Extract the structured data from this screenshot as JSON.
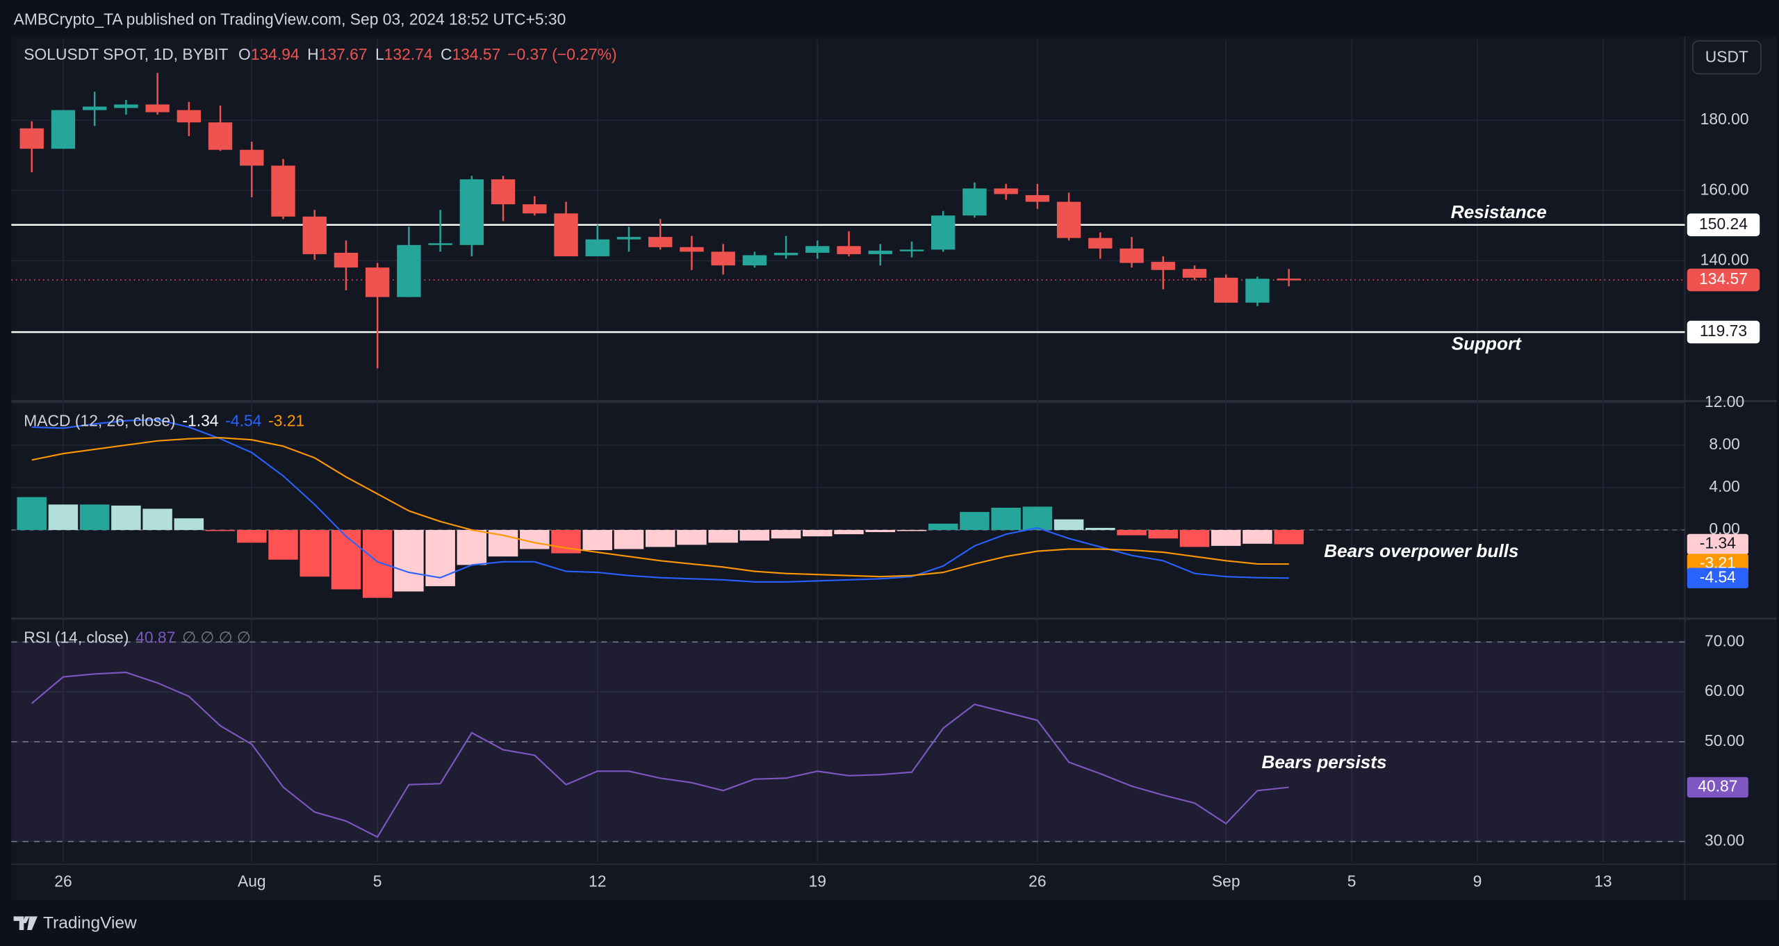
{
  "header": {
    "publisher": "AMBCrypto_TA published on TradingView.com, Sep 03, 2024 18:52 UTC+5:30",
    "brand": "TradingView",
    "currency": "USDT"
  },
  "chart_data": [
    {
      "type": "candlestick",
      "symbol": "SOLUSDT SPOT, 1D, BYBIT",
      "ohlc_labels": [
        "O",
        "H",
        "L",
        "C"
      ],
      "change": "−0.37 (−0.27%)",
      "x": [
        0,
        1,
        2,
        3,
        4,
        5,
        6,
        7,
        8,
        9,
        10,
        11,
        12,
        13,
        14,
        15,
        16,
        17,
        18,
        19,
        20,
        21,
        22,
        23,
        24,
        25,
        26,
        27,
        28,
        29,
        30,
        31,
        32,
        33,
        34,
        35,
        36,
        37,
        38,
        39,
        40
      ],
      "open": [
        177.7,
        171.9,
        182.9,
        183.5,
        184.5,
        182.9,
        179.4,
        171.6,
        167.1,
        152.6,
        142.3,
        138.1,
        129.7,
        144.5,
        144.5,
        163.2,
        156.1,
        153.5,
        141.3,
        146.1,
        146.8,
        143.9,
        142.6,
        138.7,
        141.6,
        142.3,
        144.2,
        141.9,
        142.9,
        143.2,
        152.9,
        160.6,
        158.7,
        156.8,
        146.5,
        143.5,
        139.7,
        137.7,
        135.2,
        128.1,
        134.94
      ],
      "high": [
        179.7,
        182.9,
        188.1,
        185.8,
        193.5,
        185.2,
        184.2,
        173.9,
        169.0,
        154.5,
        145.8,
        139.4,
        149.7,
        154.5,
        164.2,
        164.2,
        158.4,
        156.8,
        150.3,
        149.7,
        151.9,
        147.1,
        144.8,
        142.6,
        147.1,
        145.8,
        148.4,
        144.8,
        145.5,
        154.2,
        162.3,
        161.9,
        161.9,
        159.4,
        148.1,
        146.8,
        141.3,
        138.7,
        136.1,
        135.5,
        137.67
      ],
      "low": [
        165.2,
        171.9,
        178.4,
        181.6,
        181.6,
        175.5,
        171.3,
        158.1,
        151.9,
        140.3,
        131.6,
        109.4,
        129.7,
        142.6,
        141.3,
        151.3,
        152.9,
        141.3,
        141.3,
        142.6,
        143.2,
        137.4,
        136.1,
        138.1,
        140.6,
        140.6,
        141.3,
        138.7,
        141.0,
        142.6,
        152.3,
        157.4,
        154.8,
        145.8,
        140.6,
        138.1,
        131.9,
        134.5,
        128.1,
        127.1,
        132.74
      ],
      "close": [
        171.9,
        182.9,
        183.9,
        184.5,
        182.3,
        179.4,
        171.6,
        167.1,
        152.6,
        141.9,
        138.1,
        129.7,
        144.5,
        145.0,
        163.2,
        156.1,
        153.5,
        141.3,
        146.1,
        146.8,
        143.9,
        142.6,
        138.7,
        141.6,
        142.3,
        144.2,
        141.9,
        142.9,
        143.2,
        152.9,
        160.6,
        159.0,
        156.8,
        146.5,
        143.5,
        139.4,
        137.4,
        135.2,
        128.1,
        134.9,
        134.57
      ],
      "up_color": "#26a69a",
      "down_color": "#ef5350",
      "ylim": [
        100.6,
        202.9
      ],
      "yticks": [
        {
          "value": 140,
          "label": "140.00"
        },
        {
          "value": 160,
          "label": "160.00"
        },
        {
          "value": 180,
          "label": "180.00"
        }
      ],
      "xlim": [
        -0.65,
        52.6
      ],
      "xticks": [
        {
          "value": 1,
          "label": "26"
        },
        {
          "value": 7,
          "label": "Aug"
        },
        {
          "value": 11,
          "label": "5"
        },
        {
          "value": 18,
          "label": "12"
        },
        {
          "value": 25,
          "label": "19"
        },
        {
          "value": 32,
          "label": "26"
        },
        {
          "value": 38,
          "label": "Sep"
        },
        {
          "value": 42,
          "label": "5"
        },
        {
          "value": 46,
          "label": "9"
        },
        {
          "value": 50,
          "label": "13"
        }
      ],
      "levels": [
        {
          "name": "Resistance",
          "value": 150.24
        },
        {
          "name": "Support",
          "value": 119.73
        }
      ],
      "grid": true
    },
    {
      "type": "macd",
      "title": "MACD (12, 26, close)",
      "annotation": "Bears overpower bulls",
      "histogram": [
        3.1,
        2.4,
        2.4,
        2.3,
        2.0,
        1.1,
        -0.1,
        -1.2,
        -2.8,
        -4.4,
        -5.6,
        -6.4,
        -5.8,
        -5.3,
        -3.3,
        -2.5,
        -1.8,
        -2.2,
        -1.9,
        -1.8,
        -1.6,
        -1.4,
        -1.2,
        -1.0,
        -0.8,
        -0.6,
        -0.4,
        -0.2,
        -0.1,
        0.6,
        1.7,
        2.1,
        2.2,
        1.0,
        0.2,
        -0.5,
        -0.8,
        -1.6,
        -1.5,
        -1.3,
        -1.34
      ],
      "hist_colors": {
        "up_strong": "#26a69a",
        "up_weak": "#b2dfdb",
        "down_strong": "#ff5252",
        "down_weak": "#ffcdd2"
      },
      "macd": {
        "color": "#2962ff",
        "values": [
          9.7,
          9.6,
          10.0,
          10.3,
          10.4,
          9.7,
          8.6,
          7.3,
          5.1,
          2.4,
          -0.6,
          -3.0,
          -4.0,
          -4.5,
          -3.3,
          -3.0,
          -3.0,
          -3.9,
          -4.0,
          -4.3,
          -4.5,
          -4.6,
          -4.7,
          -4.9,
          -4.9,
          -4.8,
          -4.7,
          -4.6,
          -4.4,
          -3.4,
          -1.5,
          -0.4,
          0.2,
          -0.8,
          -1.6,
          -2.4,
          -2.9,
          -4.1,
          -4.4,
          -4.5,
          -4.54
        ]
      },
      "signal": {
        "color": "#ff9800",
        "values": [
          6.6,
          7.2,
          7.6,
          8.0,
          8.4,
          8.6,
          8.7,
          8.5,
          7.9,
          6.8,
          5.0,
          3.4,
          1.8,
          0.8,
          0.0,
          -0.5,
          -1.2,
          -1.7,
          -2.1,
          -2.5,
          -2.9,
          -3.2,
          -3.5,
          -3.9,
          -4.1,
          -4.2,
          -4.3,
          -4.4,
          -4.3,
          -4.0,
          -3.2,
          -2.5,
          -2.0,
          -1.8,
          -1.8,
          -1.9,
          -2.1,
          -2.5,
          -2.9,
          -3.2,
          -3.21
        ]
      },
      "ylim": [
        -8.1,
        12.0
      ],
      "yticks": [
        {
          "value": 0,
          "label": "0.00"
        },
        {
          "value": 4,
          "label": "4.00"
        },
        {
          "value": 8,
          "label": "8.00"
        },
        {
          "value": 12,
          "label": "12.00"
        }
      ]
    },
    {
      "type": "line",
      "title": "RSI (14, close)",
      "extra": "∅ ∅ ∅ ∅",
      "annotation": "Bears persists",
      "color": "#7e57c2",
      "values": [
        57.7,
        63.0,
        63.6,
        63.9,
        61.8,
        59.1,
        53.2,
        49.5,
        40.9,
        35.9,
        34.1,
        30.9,
        41.4,
        41.6,
        51.8,
        48.4,
        47.3,
        41.4,
        44.1,
        44.1,
        42.7,
        41.8,
        40.2,
        42.5,
        42.7,
        44.1,
        43.2,
        43.4,
        43.9,
        52.7,
        57.5,
        55.9,
        54.3,
        45.9,
        43.6,
        41.1,
        39.3,
        37.7,
        33.6,
        40.2,
        40.87
      ],
      "ylim": [
        25.9,
        74.1
      ],
      "yticks": [
        {
          "value": 30,
          "label": "30.00"
        },
        {
          "value": 50,
          "label": "50.00"
        },
        {
          "value": 60,
          "label": "60.00"
        },
        {
          "value": 70,
          "label": "70.00"
        }
      ],
      "band": [
        30,
        70
      ],
      "dashed": [
        30,
        50,
        70
      ]
    }
  ]
}
